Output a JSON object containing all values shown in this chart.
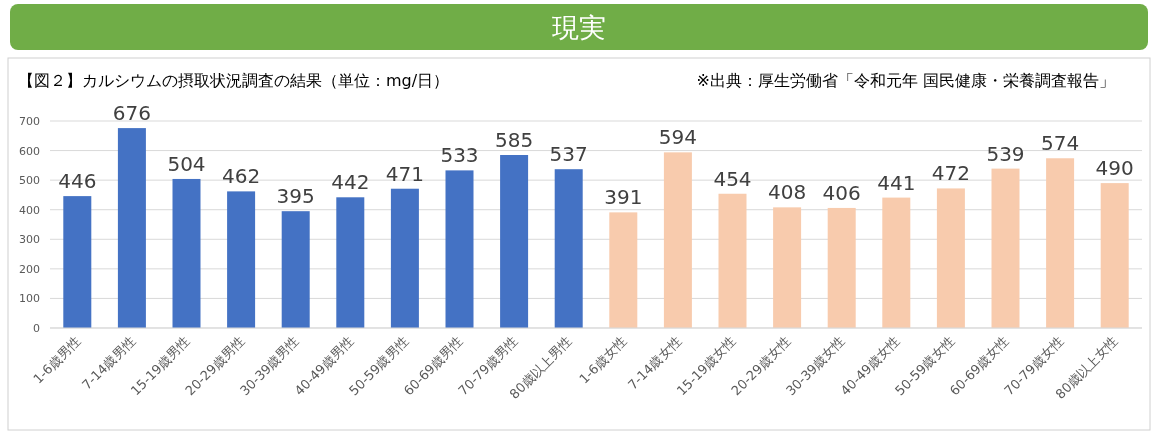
{
  "chart_data": {
    "type": "bar",
    "title": "現実",
    "subtitle": "【図２】カルシウムの摂取状況調査の結果（単位：mg/日）",
    "annotations": [
      "※出典：厚生労働省「令和元年 国民健康・栄養調査報告」"
    ],
    "categories": [
      "1-6歳男性",
      "7-14歳男性",
      "15-19歳男性",
      "20-29歳男性",
      "30-39歳男性",
      "40-49歳男性",
      "50-59歳男性",
      "60-69歳男性",
      "70-79歳男性",
      "80歳以上男性",
      "1-6歳女性",
      "7-14歳女性",
      "15-19歳女性",
      "20-29歳女性",
      "30-39歳女性",
      "40-49歳女性",
      "50-59歳女性",
      "60-69歳女性",
      "70-79歳女性",
      "80歳以上女性"
    ],
    "values": [
      446,
      676,
      504,
      462,
      395,
      442,
      471,
      533,
      585,
      537,
      391,
      594,
      454,
      408,
      406,
      441,
      472,
      539,
      574,
      490
    ],
    "colors": [
      "#4472c4",
      "#4472c4",
      "#4472c4",
      "#4472c4",
      "#4472c4",
      "#4472c4",
      "#4472c4",
      "#4472c4",
      "#4472c4",
      "#4472c4",
      "#f8cbad",
      "#f8cbad",
      "#f8cbad",
      "#f8cbad",
      "#f8cbad",
      "#f8cbad",
      "#f8cbad",
      "#f8cbad",
      "#f8cbad",
      "#f8cbad"
    ],
    "ylim": [
      0,
      700
    ],
    "yticks": [
      0,
      100,
      200,
      300,
      400,
      500,
      600,
      700
    ],
    "grid": "y",
    "data_labels": true
  }
}
